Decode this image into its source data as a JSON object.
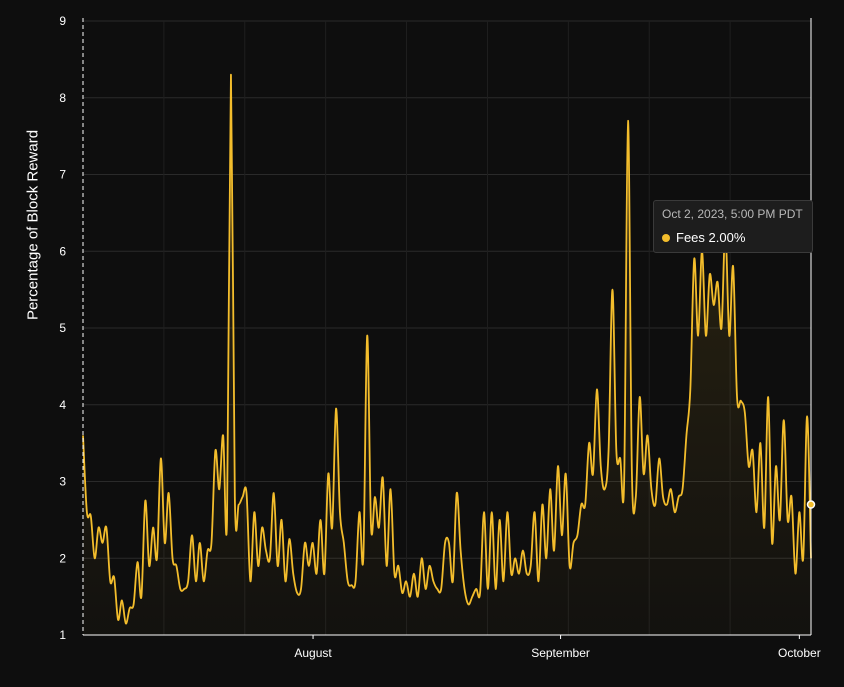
{
  "chart_data": {
    "type": "area",
    "ylabel": "Percentage of Block Reward",
    "ylim": [
      1,
      9
    ],
    "yticks": [
      "1",
      "2",
      "3",
      "4",
      "5",
      "6",
      "7",
      "8",
      "9"
    ],
    "xticks": [
      {
        "label": "August",
        "x": 2023.581
      },
      {
        "label": "September",
        "x": 2023.666
      },
      {
        "label": "October",
        "x": 2023.748
      }
    ],
    "xlim": [
      2023.502,
      2023.752
    ],
    "grid": true,
    "series": [
      {
        "name": "Fees",
        "color": "#f3bd2c",
        "x_start": 2023.502,
        "x_end": 2023.752,
        "values": [
          3.6,
          2.6,
          2.55,
          2.0,
          2.4,
          2.2,
          2.4,
          1.7,
          1.75,
          1.2,
          1.45,
          1.15,
          1.35,
          1.4,
          1.95,
          1.5,
          2.75,
          1.9,
          2.4,
          2.0,
          3.3,
          2.2,
          2.85,
          2.0,
          1.9,
          1.6,
          1.6,
          1.7,
          2.3,
          1.7,
          2.2,
          1.7,
          2.1,
          2.2,
          3.4,
          2.9,
          3.6,
          2.5,
          8.3,
          2.8,
          2.7,
          2.8,
          2.85,
          1.7,
          2.6,
          1.9,
          2.4,
          2.1,
          2.0,
          2.85,
          1.9,
          2.5,
          1.7,
          2.25,
          1.8,
          1.55,
          1.6,
          2.2,
          1.9,
          2.2,
          1.8,
          2.5,
          1.8,
          3.1,
          2.4,
          3.95,
          2.6,
          2.2,
          1.7,
          1.65,
          1.7,
          2.6,
          2.0,
          4.9,
          2.4,
          2.8,
          2.4,
          3.05,
          1.9,
          2.9,
          1.8,
          1.9,
          1.55,
          1.7,
          1.5,
          1.8,
          1.5,
          2.0,
          1.6,
          1.9,
          1.7,
          1.6,
          1.6,
          2.2,
          2.2,
          1.7,
          2.85,
          2.1,
          1.6,
          1.4,
          1.5,
          1.6,
          1.55,
          2.6,
          1.6,
          2.6,
          1.6,
          2.5,
          1.7,
          2.6,
          1.8,
          2.0,
          1.8,
          2.1,
          1.8,
          1.9,
          2.6,
          1.7,
          2.7,
          2.0,
          2.9,
          2.1,
          3.2,
          2.3,
          3.1,
          1.9,
          2.2,
          2.3,
          2.7,
          2.7,
          3.5,
          3.1,
          4.2,
          3.2,
          2.9,
          3.4,
          5.5,
          3.4,
          3.3,
          3.0,
          7.7,
          3.1,
          2.8,
          4.1,
          3.1,
          3.6,
          2.9,
          2.7,
          3.3,
          2.8,
          2.7,
          2.9,
          2.6,
          2.8,
          2.9,
          3.6,
          4.2,
          5.9,
          4.9,
          6.0,
          4.9,
          5.7,
          5.3,
          5.6,
          5.0,
          6.3,
          4.9,
          5.8,
          4.1,
          4.05,
          3.9,
          3.2,
          3.4,
          2.6,
          3.5,
          2.4,
          4.1,
          2.2,
          3.2,
          2.5,
          3.8,
          2.5,
          2.8,
          1.8,
          2.6,
          2.0,
          3.85,
          2.0
        ]
      }
    ]
  },
  "tooltip": {
    "date": "Oct 2, 2023, 5:00 PM PDT",
    "series_label": "Fees 2.00%",
    "value": 2.0
  }
}
